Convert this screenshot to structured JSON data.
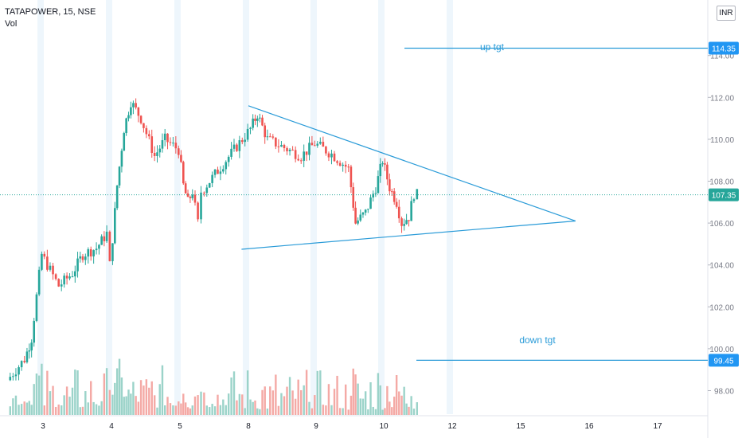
{
  "header": {
    "symbol_line": "TATAPOWER, 15, NSE",
    "volume_label": "Vol",
    "currency": "INR"
  },
  "chart_data": {
    "type": "candlestick",
    "symbol": "TATAPOWER",
    "interval": "15",
    "exchange": "NSE",
    "x_ticks": [
      "3",
      "4",
      "5",
      "8",
      "9",
      "10",
      "12",
      "15",
      "16",
      "17"
    ],
    "y_ticks": [
      "98.00",
      "100.00",
      "102.00",
      "104.00",
      "106.00",
      "108.00",
      "110.00",
      "112.00",
      "114.00"
    ],
    "ylim": [
      96.5,
      115.5
    ],
    "last_price": 107.35,
    "last_price_label": "107.35",
    "price_lines": [
      {
        "label": "up tgt",
        "price": 114.35,
        "price_label": "114.35"
      },
      {
        "label": "down tgt",
        "price": 99.45,
        "price_label": "99.45"
      }
    ],
    "trendlines": [
      {
        "name": "upper",
        "points": [
          {
            "session": 8,
            "price": 111.6
          },
          {
            "session": 15.8,
            "price": 106.1
          }
        ]
      },
      {
        "name": "lower",
        "points": [
          {
            "session": 7.7,
            "price": 104.75
          },
          {
            "session": 15.8,
            "price": 106.1
          }
        ]
      }
    ],
    "price_path": [
      {
        "session": 2.5,
        "price": 98.5
      },
      {
        "session": 2.75,
        "price": 99.5
      },
      {
        "session": 2.85,
        "price": 100.5
      },
      {
        "session": 3.0,
        "price": 104.5
      },
      {
        "session": 3.25,
        "price": 103.0
      },
      {
        "session": 3.45,
        "price": 103.6
      },
      {
        "session": 3.6,
        "price": 104.5
      },
      {
        "session": 3.8,
        "price": 104.8
      },
      {
        "session": 3.95,
        "price": 105.5
      },
      {
        "session": 4.0,
        "price": 104.0
      },
      {
        "session": 4.1,
        "price": 107.8
      },
      {
        "session": 4.2,
        "price": 110.5
      },
      {
        "session": 4.3,
        "price": 111.8
      },
      {
        "session": 4.45,
        "price": 111.0
      },
      {
        "session": 4.65,
        "price": 109.2
      },
      {
        "session": 4.8,
        "price": 110.0
      },
      {
        "session": 5.0,
        "price": 109.5
      },
      {
        "session": 5.2,
        "price": 107.8
      },
      {
        "session": 5.4,
        "price": 107.0
      },
      {
        "session": 5.6,
        "price": 107.5
      },
      {
        "session": 5.85,
        "price": 106.0
      },
      {
        "session": 6.0,
        "price": 107.5
      },
      {
        "session": 8.05,
        "price": 110.5
      },
      {
        "session": 8.15,
        "price": 111.2
      },
      {
        "session": 8.3,
        "price": 110.0
      },
      {
        "session": 8.55,
        "price": 109.6
      },
      {
        "session": 8.8,
        "price": 109.2
      },
      {
        "session": 9.0,
        "price": 109.8
      },
      {
        "session": 9.25,
        "price": 109.3
      },
      {
        "session": 9.5,
        "price": 108.6
      },
      {
        "session": 9.6,
        "price": 106.0
      },
      {
        "session": 9.75,
        "price": 106.5
      },
      {
        "session": 9.9,
        "price": 107.7
      },
      {
        "session": 10.0,
        "price": 109.0
      },
      {
        "session": 10.2,
        "price": 107.7
      },
      {
        "session": 10.4,
        "price": 107.0
      },
      {
        "session": 10.55,
        "price": 106.0
      },
      {
        "session": 10.75,
        "price": 106.3
      },
      {
        "session": 10.9,
        "price": 107.4
      },
      {
        "session": 11.0,
        "price": 107.35
      }
    ]
  }
}
